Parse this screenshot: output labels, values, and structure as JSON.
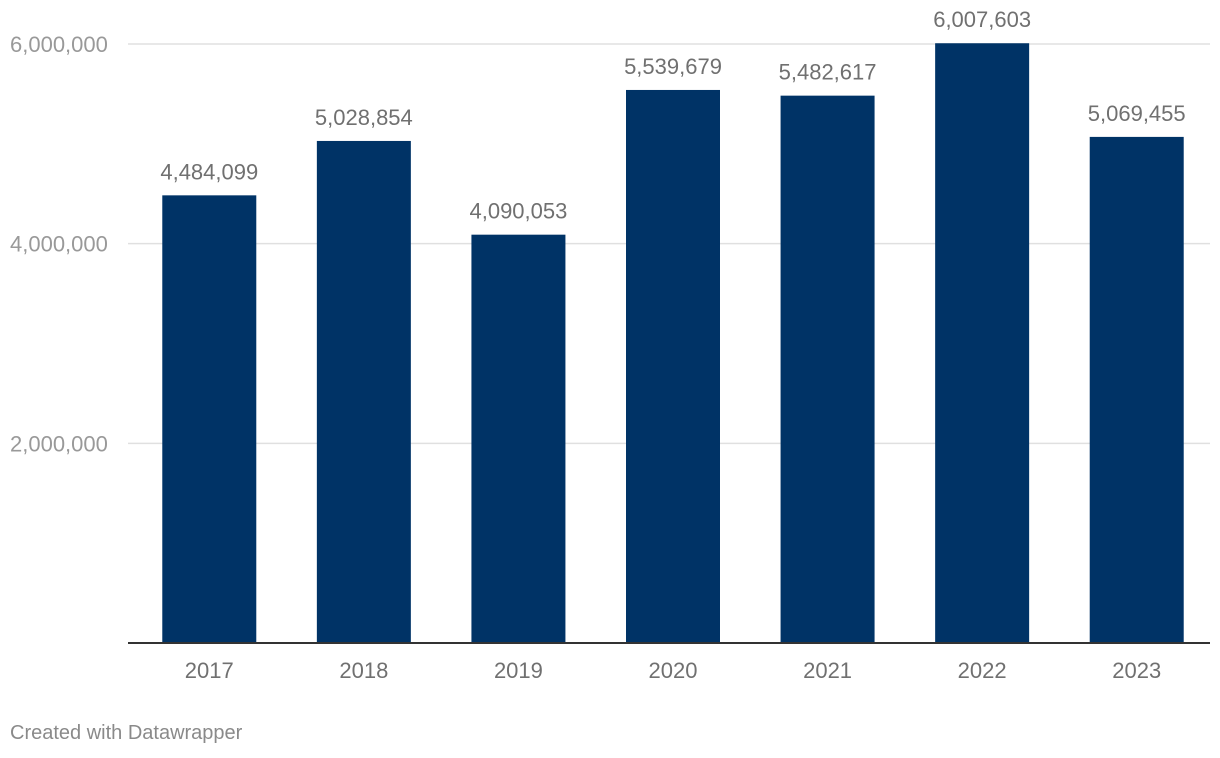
{
  "credit": "Created with Datawrapper",
  "colors": {
    "bar": "#003366",
    "grid": "#e0e0e0",
    "axis": "#333333",
    "tick_label": "#999999",
    "value_label": "#707070",
    "category_label": "#707070"
  },
  "chart_data": {
    "type": "bar",
    "categories": [
      "2017",
      "2018",
      "2019",
      "2020",
      "2021",
      "2022",
      "2023"
    ],
    "values": [
      4484099,
      5028854,
      4090053,
      5539679,
      5482617,
      6007603,
      5069455
    ],
    "value_labels": [
      "4,484,099",
      "5,028,854",
      "4,090,053",
      "5,539,679",
      "5,482,617",
      "6,007,603",
      "5,069,455"
    ],
    "y_ticks": [
      2000000,
      4000000,
      6000000
    ],
    "y_tick_labels": [
      "2,000,000",
      "4,000,000",
      "6,000,000"
    ],
    "ylim": [
      0,
      6000000
    ],
    "title": "",
    "xlabel": "",
    "ylabel": "",
    "grid": true,
    "legend": "none"
  }
}
